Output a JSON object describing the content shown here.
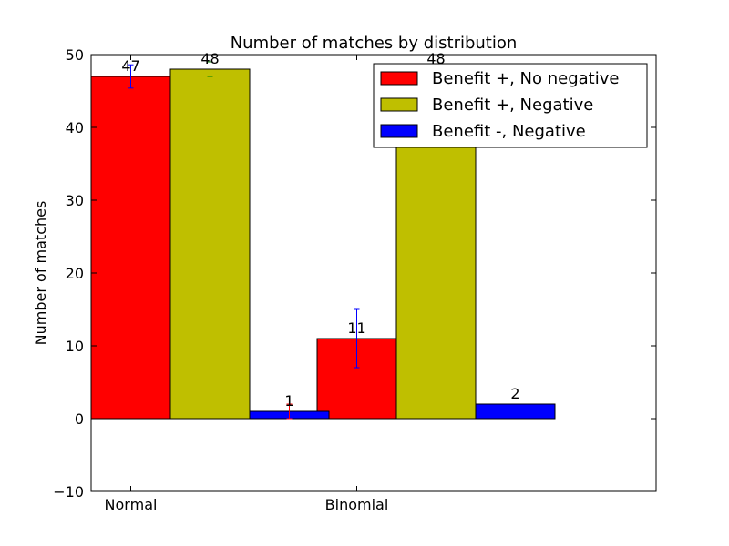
{
  "chart_data": {
    "type": "bar",
    "title": "Number of matches by distribution",
    "xlabel": "",
    "ylabel": "Number of matches",
    "categories": [
      "Normal",
      "Binomial"
    ],
    "ylim": [
      -10,
      50
    ],
    "yticks": [
      -10,
      0,
      10,
      20,
      30,
      40,
      50
    ],
    "ytick_labels": [
      "−10",
      "0",
      "10",
      "20",
      "30",
      "40",
      "50"
    ],
    "legend_position": "top-right",
    "grid": false,
    "series": [
      {
        "name": "Benefit +, No negative",
        "color": "#ff0000",
        "values": [
          47,
          11
        ],
        "errors": [
          1.6,
          4.0
        ],
        "error_color": "#0000ff"
      },
      {
        "name": "Benefit +, Negative",
        "color": "#bfbf00",
        "values": [
          48,
          48
        ],
        "errors": [
          1.0,
          0
        ],
        "error_color": "#008000"
      },
      {
        "name": "Benefit -, Negative",
        "color": "#0000ff",
        "values": [
          1,
          2
        ],
        "errors": [
          1.0,
          0
        ],
        "error_color": "#ff0000"
      }
    ]
  }
}
